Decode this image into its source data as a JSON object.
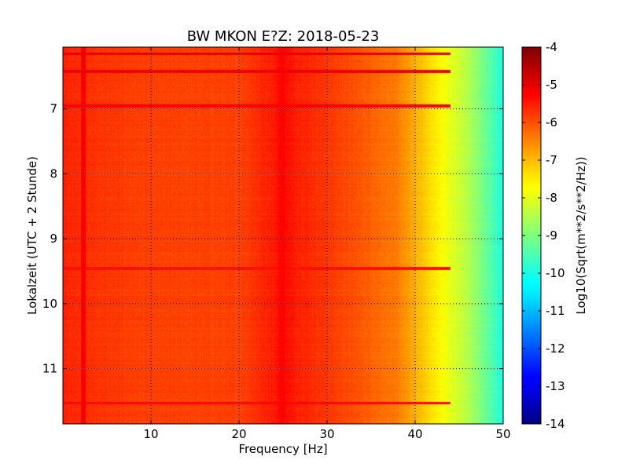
{
  "chart_data": {
    "type": "heatmap",
    "title": "BW MKON E?Z: 2018-05-23",
    "xlabel": "Frequency [Hz]",
    "ylabel": "Lokalzeit (UTC + 2 Stunde)",
    "colorbar_label": "Log10(Sqrt(m**2/s**2/Hz))",
    "xlim": [
      0,
      50
    ],
    "ylim": [
      11.85,
      6.05
    ],
    "x_ticks": [
      10,
      20,
      30,
      40,
      50
    ],
    "y_ticks": [
      7,
      8,
      9,
      10,
      11
    ],
    "grid": true,
    "colorbar_range": [
      -14,
      -4
    ],
    "colorbar_ticks": [
      -4,
      -5,
      -6,
      -7,
      -8,
      -9,
      -10,
      -11,
      -12,
      -13,
      -14
    ],
    "colormap": "jet",
    "spectral_profile": {
      "frequency_hz": [
        0,
        5,
        10,
        20,
        24,
        25,
        26,
        30,
        35,
        38,
        40,
        42,
        44,
        46,
        48,
        50
      ],
      "log_psd": [
        -5.6,
        -5.8,
        -5.9,
        -5.9,
        -5.5,
        -5.3,
        -5.5,
        -5.8,
        -6.2,
        -6.5,
        -7.0,
        -7.5,
        -8.0,
        -8.5,
        -9.2,
        -10.0
      ]
    },
    "features": [
      {
        "kind": "persistent-line",
        "frequency_hz": 2.3,
        "log_psd": -5.2
      },
      {
        "kind": "persistent-line",
        "frequency_hz": 24.8,
        "log_psd": -5.3
      },
      {
        "kind": "time-band",
        "time_h": 6.15,
        "log_psd": -5.0
      },
      {
        "kind": "time-band",
        "time_h": 6.42,
        "log_psd": -5.1
      },
      {
        "kind": "time-band",
        "time_h": 6.95,
        "log_psd": -5.2
      },
      {
        "kind": "time-band",
        "time_h": 9.45,
        "log_psd": -5.4
      },
      {
        "kind": "time-band",
        "time_h": 11.52,
        "log_psd": -5.3
      }
    ]
  }
}
